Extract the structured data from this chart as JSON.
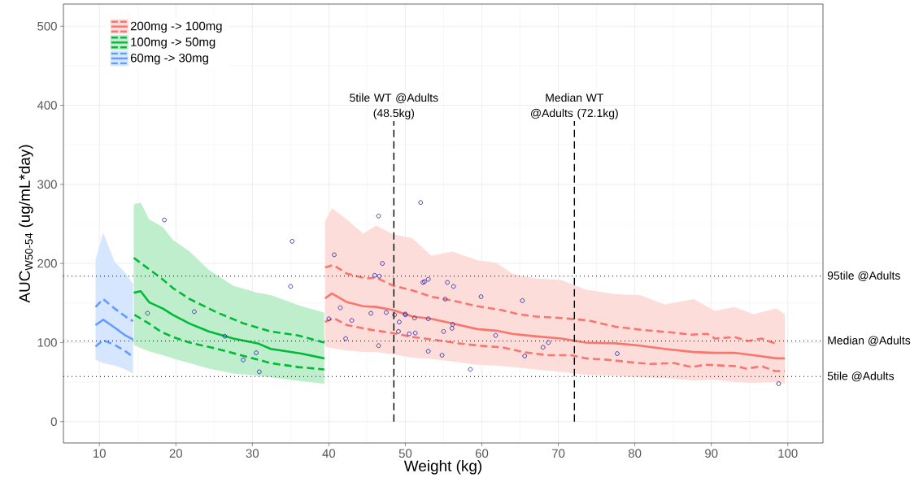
{
  "chart_data": {
    "type": "line",
    "xlabel": "Weight (kg)",
    "ylabel": "AUC$_{W50-54}$ (ug/mL*day)",
    "xlim": [
      5.3,
      104.6
    ],
    "ylim": [
      -27,
      528
    ],
    "xticks": [
      10,
      20,
      30,
      40,
      50,
      60,
      70,
      80,
      90,
      100
    ],
    "yticks": [
      0,
      100,
      200,
      300,
      400,
      500
    ],
    "grid": true,
    "legend": "top left",
    "series": [
      {
        "name": "200mg -> 100mg",
        "color": "#f8766d",
        "x": [
          39.5,
          40.4,
          42.4,
          44.5,
          46.2,
          48.4,
          50.9,
          53.4,
          56.2,
          59.4,
          61.9,
          64,
          66.9,
          70.4,
          73.6,
          77.5,
          80.7,
          83.9,
          87.7,
          90.5,
          93,
          95.5,
          98.5,
          99.6
        ],
        "values": [
          156,
          162,
          151,
          146,
          145,
          141,
          133,
          130,
          124,
          117,
          115,
          111,
          108,
          105,
          100,
          99,
          96,
          92,
          88,
          87,
          87,
          84,
          80,
          80
        ],
        "upper": [
          253,
          270,
          255,
          238,
          248,
          237,
          232,
          210,
          215,
          204,
          201,
          187,
          181,
          179,
          167,
          161,
          160,
          148,
          155,
          140,
          145,
          136,
          143,
          136
        ],
        "lower": [
          95,
          93,
          90,
          88,
          88,
          85,
          81,
          79,
          76,
          72,
          71,
          69,
          66,
          63,
          59,
          58,
          56,
          55,
          52,
          53,
          50,
          49,
          50,
          48
        ]
      },
      {
        "color": "#f8766d",
        "line_style": "dashed",
        "x": [
          39.5,
          40.6,
          42.4,
          44.9,
          46.2,
          48.4,
          50.9,
          53.4,
          56.2,
          59.4,
          62.6,
          64.7,
          66.9,
          70.4,
          73.9,
          77.5,
          81,
          84.5,
          87.4,
          89.5,
          90.5,
          93,
          94.8,
          96.6,
          98.3
        ],
        "values": [
          195,
          198,
          187,
          181,
          182,
          172,
          166,
          158,
          153,
          146,
          141,
          136,
          133,
          131,
          128,
          120,
          116,
          113,
          110,
          111,
          105,
          107,
          102,
          105,
          99
        ]
      },
      {
        "color": "#f8766d",
        "line_style": "dashed",
        "x": [
          39.5,
          40.6,
          42.4,
          45.6,
          48.4,
          50.9,
          53.4,
          56.9,
          59.7,
          62.6,
          65.4,
          68.6,
          71.7,
          73.6,
          76.7,
          79.6,
          82,
          85.2,
          87.4,
          89.2,
          93.4,
          94.5,
          96.6,
          98.3,
          99.6
        ],
        "values": [
          126,
          131,
          122,
          116,
          112,
          107,
          104,
          99,
          96,
          94,
          88,
          84,
          84,
          80,
          78,
          75,
          73,
          74,
          69,
          72,
          70,
          67,
          70,
          64,
          64
        ]
      },
      {
        "name": "100mg -> 50mg",
        "color": "#00ba38",
        "x": [
          14.5,
          15.4,
          16.5,
          18.3,
          19.6,
          21.8,
          24.3,
          27.5,
          30.7,
          32.4,
          36.4,
          39.4
        ],
        "values": [
          163,
          165,
          151,
          143,
          135,
          124,
          114,
          105,
          99,
          92,
          86,
          80
        ],
        "upper": [
          275,
          277,
          256,
          246,
          230,
          215,
          192,
          172,
          163,
          160,
          146,
          138
        ],
        "lower": [
          97,
          93,
          89,
          84,
          80,
          74,
          67,
          61,
          58,
          56,
          51,
          48
        ]
      },
      {
        "color": "#00ba38",
        "line_style": "dashed",
        "x": [
          14.5,
          18,
          19.6,
          21.8,
          25.4,
          28.9,
          32.4,
          36,
          39.4
        ],
        "values": [
          207,
          182,
          169,
          155,
          138,
          124,
          114,
          109,
          100
        ]
      },
      {
        "color": "#00ba38",
        "line_style": "dashed",
        "x": [
          14.6,
          16.5,
          18,
          19.6,
          21.8,
          25.4,
          28.9,
          32.4,
          36,
          39.4
        ],
        "values": [
          135,
          124,
          114,
          107,
          100,
          92,
          83,
          74,
          69,
          66
        ]
      },
      {
        "name": "60mg -> 30mg",
        "color": "#619cff",
        "x": [
          9.5,
          10.5,
          12,
          13.4,
          14.4
        ],
        "values": [
          122,
          129,
          119,
          109,
          104
        ],
        "upper": [
          205,
          239,
          202,
          188,
          174
        ],
        "lower": [
          78,
          74,
          71,
          66,
          61
        ]
      },
      {
        "color": "#619cff",
        "line_style": "dashed",
        "x": [
          9.5,
          10.5,
          12,
          13.4,
          14.4
        ],
        "values": [
          145,
          155,
          143,
          133,
          127
        ]
      },
      {
        "color": "#619cff",
        "line_style": "dashed",
        "x": [
          9.5,
          10.5,
          12,
          13.4,
          14.4
        ],
        "values": [
          95,
          103,
          97,
          89,
          82
        ]
      },
      {
        "type": "scatter",
        "color": "#2a2aa8",
        "marker": "circle",
        "x": [
          18.5,
          16.3,
          22.4,
          26.4,
          28.8,
          30.5,
          30.9,
          35.2,
          35,
          40,
          52,
          46.5,
          40.7,
          47,
          46,
          46.6,
          52.3,
          52.5,
          53,
          55.5,
          56.3,
          55.2,
          59.9,
          65.3,
          41.5,
          45.5,
          47.5,
          48.6,
          50,
          50,
          51.2,
          53,
          43,
          49.2,
          56.2,
          56.1,
          49.1,
          50.5,
          51.3,
          55,
          61.8,
          42.2,
          46.5,
          53,
          54.8,
          58.5,
          65.6,
          68,
          68.7,
          77.7,
          98.8
        ],
        "values": [
          255,
          137,
          139,
          108,
          78,
          87,
          63,
          228,
          171,
          130,
          277,
          260,
          211,
          200,
          185,
          184,
          176,
          177,
          180,
          176,
          171,
          155,
          158,
          153,
          144,
          137,
          138,
          135,
          136,
          135,
          131,
          130,
          128,
          126,
          123,
          118,
          114,
          111,
          112,
          114,
          109,
          105,
          96,
          89,
          84,
          66,
          83,
          94,
          100,
          86,
          48
        ]
      }
    ],
    "ref_lines": [
      {
        "axis": "y",
        "value": 184,
        "label": "95tile @Adults",
        "line_style": "dotted"
      },
      {
        "axis": "y",
        "value": 102,
        "label": "Median @Adults",
        "line_style": "dotted"
      },
      {
        "axis": "y",
        "value": 57,
        "label": "5tile @Adults",
        "line_style": "dotted"
      },
      {
        "axis": "x",
        "value": 48.5,
        "label": "5tile WT @Adults (48.5kg)",
        "line_style": "dashed"
      },
      {
        "axis": "x",
        "value": 72.1,
        "label": "Median WT @Adults (72.1kg)",
        "line_style": "dashed"
      }
    ]
  }
}
